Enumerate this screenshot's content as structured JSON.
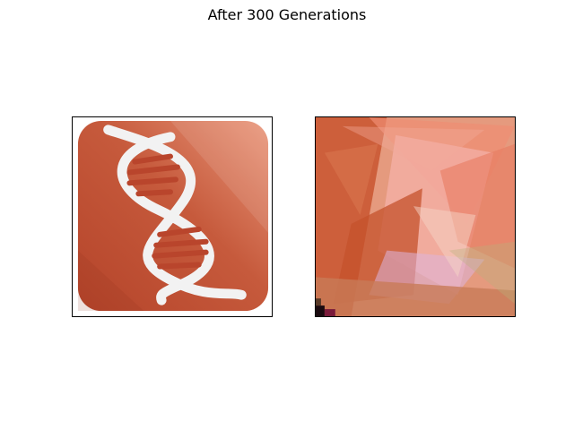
{
  "figure": {
    "title": "After 300 Generations"
  },
  "panels": [
    {
      "icon": "dna-helix-icon",
      "content": "target image"
    },
    {
      "icon": "evolved-polygon-image",
      "content": "evolved approximation"
    }
  ],
  "colors": {
    "icon_base": "#c65a3c",
    "icon_dark": "#b5442a",
    "icon_light": "#e9967a",
    "helix": "#f2f2f2",
    "rung": "#b9452c"
  }
}
